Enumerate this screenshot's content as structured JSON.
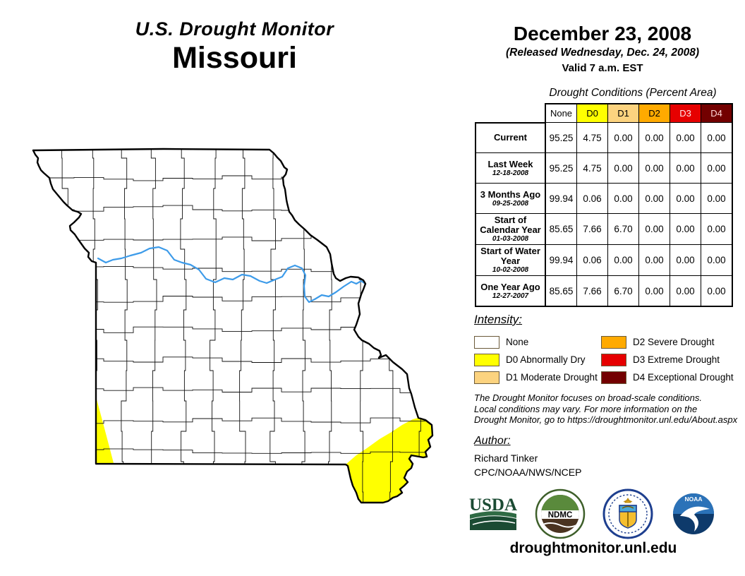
{
  "header": {
    "title": "U.S. Drought Monitor",
    "state": "Missouri",
    "date": "December 23, 2008",
    "released": "(Released Wednesday, Dec. 24, 2008)",
    "valid": "Valid 7 a.m. EST"
  },
  "table": {
    "title": "Drought Conditions (Percent Area)",
    "columns": [
      {
        "label": "None",
        "color": "#FFFFFF",
        "text_color": "#000000"
      },
      {
        "label": "D0",
        "color": "#FFFF00",
        "text_color": "#000000"
      },
      {
        "label": "D1",
        "color": "#FCD37F",
        "text_color": "#000000"
      },
      {
        "label": "D2",
        "color": "#FFAA00",
        "text_color": "#000000"
      },
      {
        "label": "D3",
        "color": "#E60000",
        "text_color": "#FFE9E9"
      },
      {
        "label": "D4",
        "color": "#730000",
        "text_color": "#FFD9D9"
      }
    ],
    "rows": [
      {
        "label": "Current",
        "sublabel": "",
        "values": [
          "95.25",
          "4.75",
          "0.00",
          "0.00",
          "0.00",
          "0.00"
        ]
      },
      {
        "label": "Last Week",
        "sublabel": "12-18-2008",
        "values": [
          "95.25",
          "4.75",
          "0.00",
          "0.00",
          "0.00",
          "0.00"
        ]
      },
      {
        "label": "3 Months Ago",
        "sublabel": "09-25-2008",
        "values": [
          "99.94",
          "0.06",
          "0.00",
          "0.00",
          "0.00",
          "0.00"
        ]
      },
      {
        "label": "Start of Calendar Year",
        "sublabel": "01-03-2008",
        "values": [
          "85.65",
          "7.66",
          "6.70",
          "0.00",
          "0.00",
          "0.00"
        ]
      },
      {
        "label": "Start of Water Year",
        "sublabel": "10-02-2008",
        "values": [
          "99.94",
          "0.06",
          "0.00",
          "0.00",
          "0.00",
          "0.00"
        ]
      },
      {
        "label": "One Year Ago",
        "sublabel": "12-27-2007",
        "values": [
          "85.65",
          "7.66",
          "6.70",
          "0.00",
          "0.00",
          "0.00"
        ]
      }
    ]
  },
  "legend": {
    "heading": "Intensity:",
    "items": [
      {
        "label": "None",
        "color": "#FFFFFF"
      },
      {
        "label": "D0 Abnormally Dry",
        "color": "#FFFF00"
      },
      {
        "label": "D1 Moderate Drought",
        "color": "#FCD37F"
      },
      {
        "label": "D2 Severe Drought",
        "color": "#FFAA00"
      },
      {
        "label": "D3 Extreme Drought",
        "color": "#E60000"
      },
      {
        "label": "D4 Exceptional Drought",
        "color": "#730000"
      }
    ]
  },
  "disclaimer": {
    "lines": [
      "The Drought Monitor focuses on broad-scale conditions.",
      "Local conditions may vary. For more information on the",
      "Drought Monitor, go to https://droughtmonitor.unl.edu/About.aspx"
    ]
  },
  "author": {
    "heading": "Author:",
    "name": "Richard Tinker",
    "org": "CPC/NOAA/NWS/NCEP"
  },
  "logos": {
    "usda_text": "USDA",
    "ndmc_text": "NDMC",
    "noaa_text": "NOAA"
  },
  "footer": {
    "url": "droughtmonitor.unl.edu"
  },
  "map": {
    "region": "Missouri",
    "d0_color": "#FFFF00",
    "none_color": "#FFFFFF",
    "river_color": "#3D9BE9",
    "d0_areas": [
      "southwest border strip",
      "southeast bootheel region"
    ]
  }
}
